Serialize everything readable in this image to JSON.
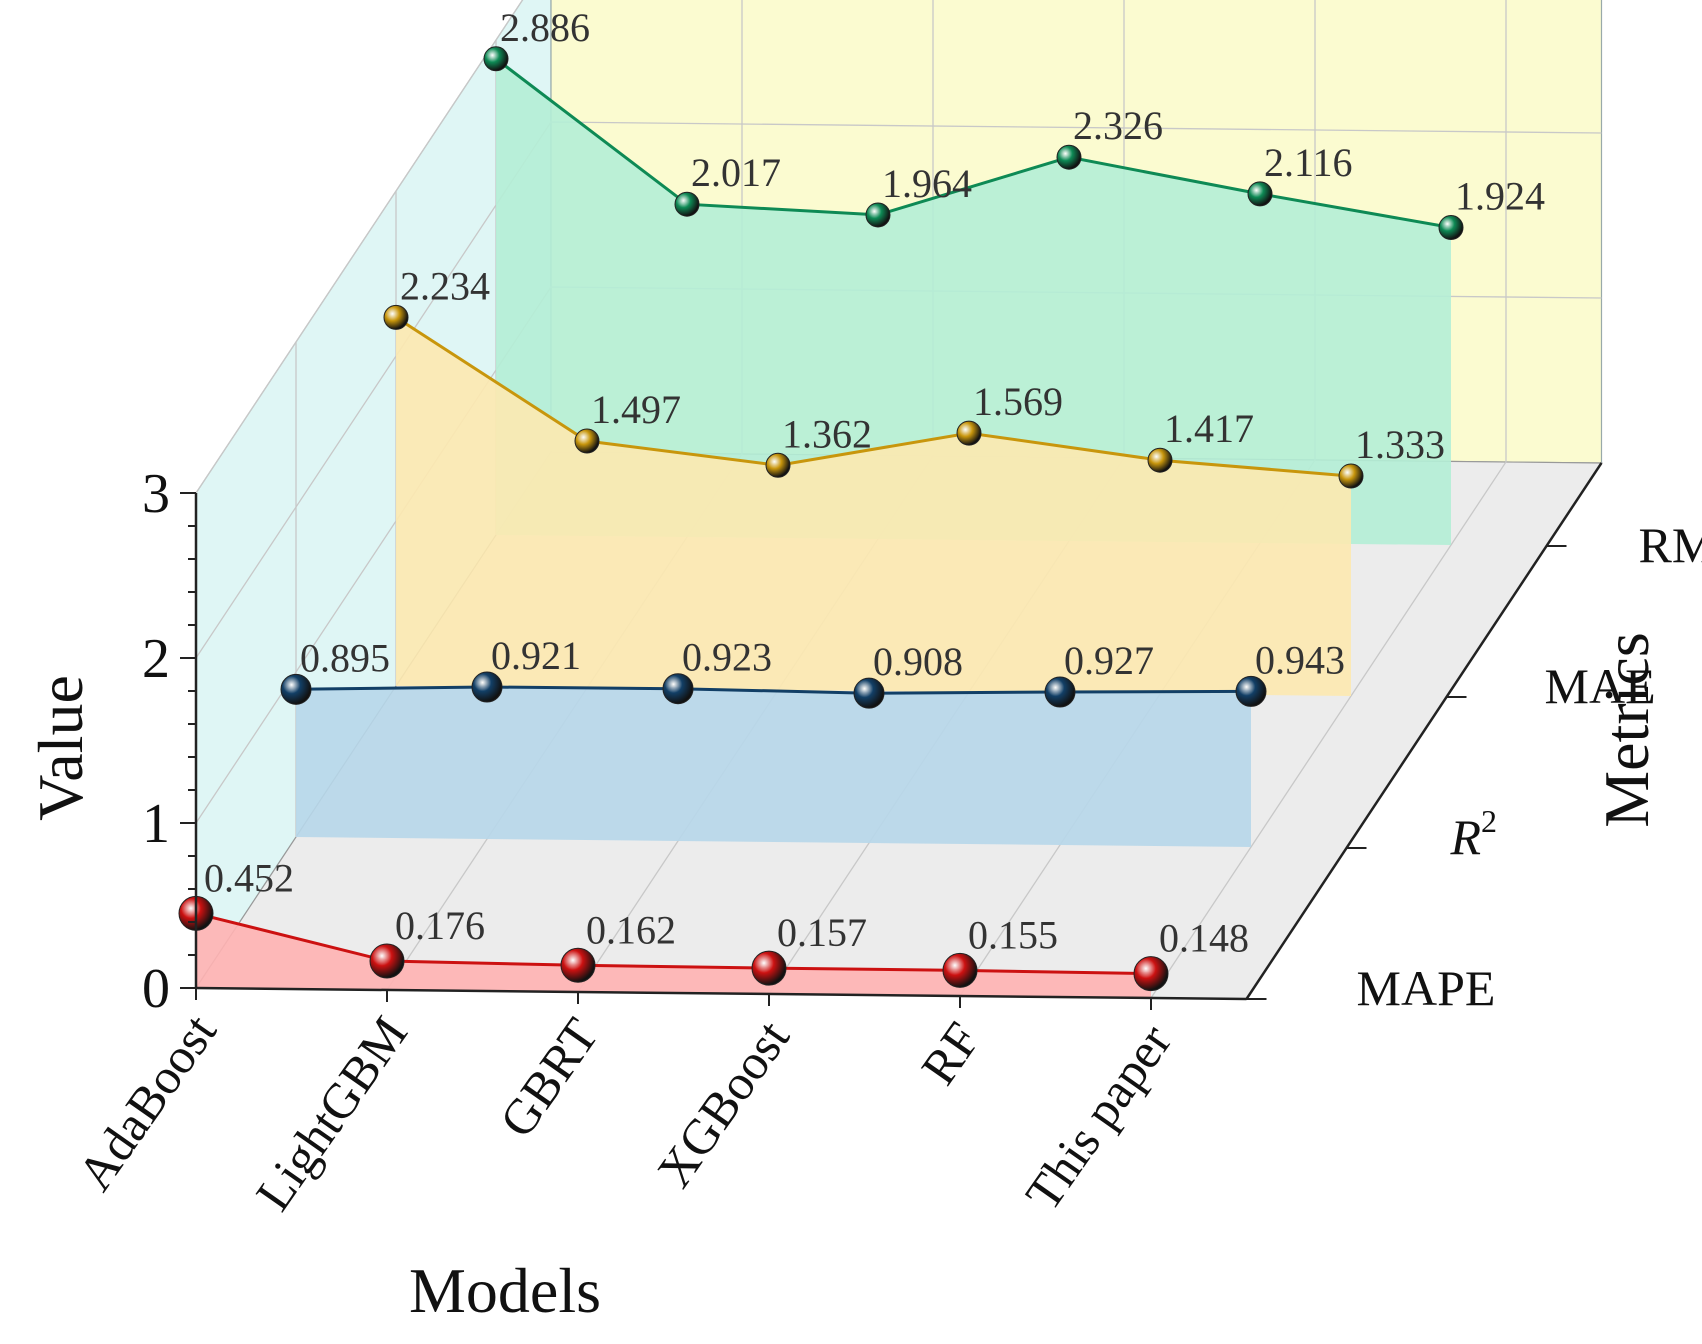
{
  "chart_data": {
    "type": "line",
    "subtype": "3d-line-with-fill",
    "xlabel": "Models",
    "ylabel": "Value",
    "zlabel": "Metrics",
    "ylim": [
      0,
      3
    ],
    "yticks": [
      "0",
      "1",
      "2",
      "3"
    ],
    "categories": [
      "AdaBoost",
      "LightGBM",
      "GBRT",
      "XGBoost",
      "RF",
      "This paper"
    ],
    "series": [
      {
        "name": "MAPE",
        "values": [
          0.452,
          0.176,
          0.162,
          0.157,
          0.155,
          0.148
        ],
        "labels": [
          "0.452",
          "0.176",
          "0.162",
          "0.157",
          "0.155",
          "0.148"
        ],
        "color": "#cc1111",
        "fill": "#ffb3b3"
      },
      {
        "name": "R2",
        "values": [
          0.895,
          0.921,
          0.923,
          0.908,
          0.927,
          0.943
        ],
        "labels": [
          "0.895",
          "0.921",
          "0.923",
          "0.908",
          "0.927",
          "0.943"
        ],
        "color": "#123f66",
        "fill": "#b7d7ea"
      },
      {
        "name": "MAE",
        "values": [
          2.234,
          1.497,
          1.362,
          1.569,
          1.417,
          1.333
        ],
        "labels": [
          "2.234",
          "1.497",
          "1.362",
          "1.569",
          "1.417",
          "1.333"
        ],
        "color": "#c8960c",
        "fill": "#fde9b0"
      },
      {
        "name": "RMSE",
        "values": [
          2.886,
          2.017,
          1.964,
          2.326,
          2.116,
          1.924
        ],
        "labels": [
          "2.886",
          "2.017",
          "1.964",
          "2.326",
          "2.116",
          "1.924"
        ],
        "color": "#0e8a55",
        "fill": "#b4eed6"
      }
    ],
    "metric_labels": {
      "mape": "MAPE",
      "r2_base": "R",
      "r2_sup": "2",
      "mae": "MAE",
      "rmse": "RMSE"
    },
    "colors": {
      "back_wall": "#fbfbd0",
      "side_wall": "#dff6f5",
      "floor": "#ececec"
    },
    "grid": true,
    "legend": "none"
  }
}
